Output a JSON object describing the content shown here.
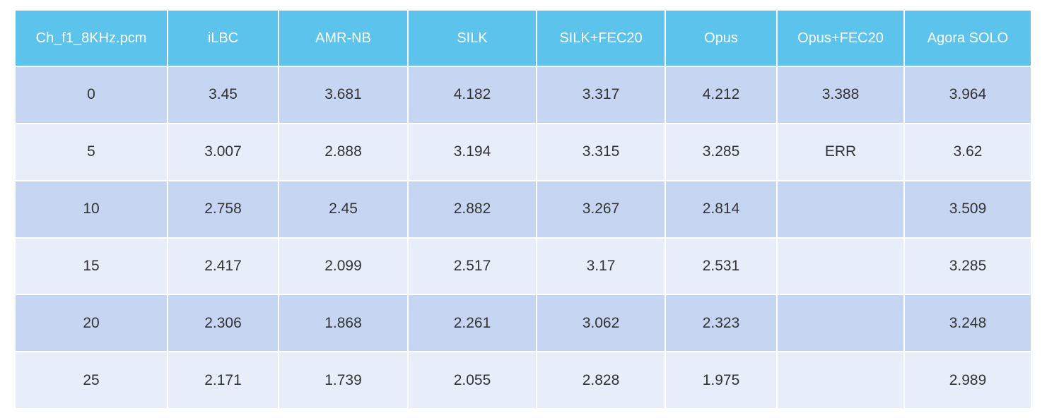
{
  "table": {
    "header": [
      "Ch_f1_8KHz.pcm",
      "iLBC",
      "AMR-NB",
      "SILK",
      "SILK+FEC20",
      "Opus",
      "Opus+FEC20",
      "Agora SOLO"
    ],
    "rows": [
      [
        "0",
        "3.45",
        "3.681",
        "4.182",
        "3.317",
        "4.212",
        "3.388",
        "3.964"
      ],
      [
        "5",
        "3.007",
        "2.888",
        "3.194",
        "3.315",
        "3.285",
        "ERR",
        "3.62"
      ],
      [
        "10",
        "2.758",
        "2.45",
        "2.882",
        "3.267",
        "2.814",
        null,
        "3.509"
      ],
      [
        "15",
        "2.417",
        "2.099",
        "2.517",
        "3.17",
        "2.531",
        null,
        "3.285"
      ],
      [
        "20",
        "2.306",
        "1.868",
        "2.261",
        "3.062",
        "2.323",
        null,
        "3.248"
      ],
      [
        "25",
        "2.171",
        "1.739",
        "2.055",
        "2.828",
        "1.975",
        null,
        "2.989"
      ]
    ]
  }
}
